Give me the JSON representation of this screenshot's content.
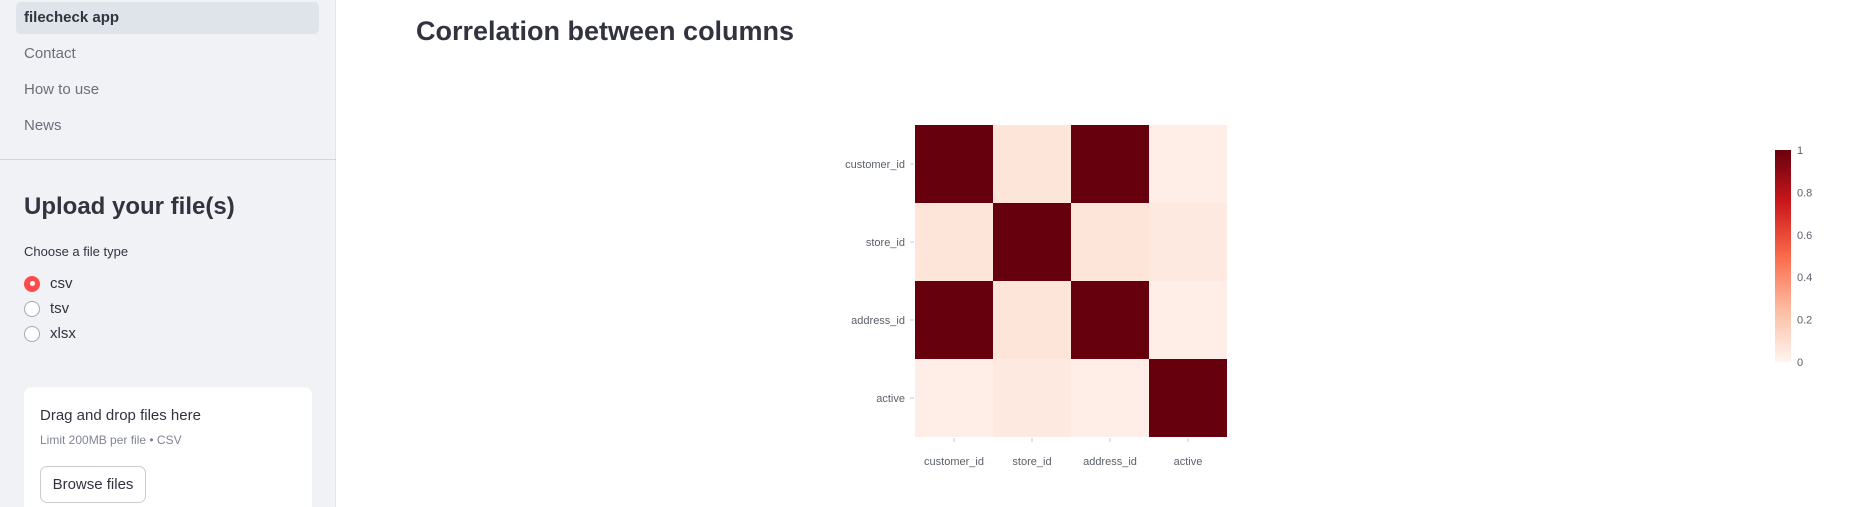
{
  "sidebar": {
    "nav": [
      {
        "label": "filecheck app",
        "active": true
      },
      {
        "label": "Contact",
        "active": false
      },
      {
        "label": "How to use",
        "active": false
      },
      {
        "label": "News",
        "active": false
      }
    ],
    "upload_title": "Upload your file(s)",
    "file_type_label": "Choose a file type",
    "file_types": [
      "csv",
      "tsv",
      "xlsx"
    ],
    "selected_file_type": "csv",
    "dropzone": {
      "title": "Drag and drop files here",
      "limit": "Limit 200MB per file • CSV",
      "button": "Browse files"
    }
  },
  "main": {
    "title": "Correlation between columns"
  },
  "colors": {
    "accent": "#ff4b4b",
    "colorscale": [
      "#fff5f0",
      "#fcbba1",
      "#fb6a4a",
      "#cb181d",
      "#67000d"
    ]
  },
  "chart_data": {
    "type": "heatmap",
    "x": [
      "customer_id",
      "store_id",
      "address_id",
      "active"
    ],
    "y": [
      "customer_id",
      "store_id",
      "address_id",
      "active"
    ],
    "z": [
      [
        1.0,
        0.07,
        1.0,
        0.03
      ],
      [
        0.07,
        1.0,
        0.07,
        0.05
      ],
      [
        1.0,
        0.07,
        1.0,
        0.03
      ],
      [
        0.03,
        0.05,
        0.03,
        1.0
      ]
    ],
    "zrange": [
      0,
      1
    ],
    "colorbar_ticks": [
      1,
      0.8,
      0.6,
      0.4,
      0.2,
      0
    ]
  }
}
